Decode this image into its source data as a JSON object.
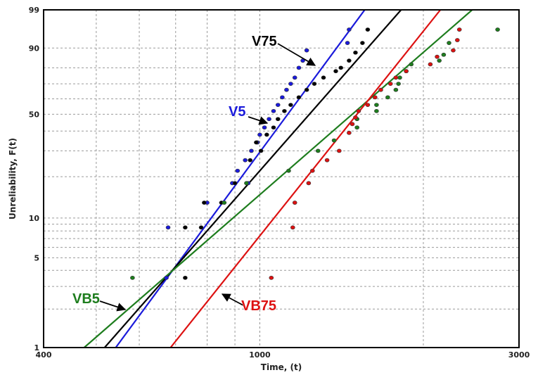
{
  "chart_data": {
    "type": "scatter",
    "title": "",
    "xlabel": "Time, (t)",
    "ylabel": "Unreliability, F(t)",
    "x_scale": "log",
    "y_scale": "weibull",
    "xlim": [
      400,
      3000
    ],
    "ylim": [
      1,
      99
    ],
    "x_ticks": [
      400,
      1000,
      3000
    ],
    "y_ticks": [
      1,
      5,
      10,
      50,
      90,
      99
    ],
    "grid": true,
    "legend": "none",
    "series": [
      {
        "name": "V5",
        "color": "#1a1adb",
        "line": [
          [
            543,
            1
          ],
          [
            1560,
            99
          ]
        ],
        "points": [
          [
            673,
            3.5
          ],
          [
            678,
            8.5
          ],
          [
            800,
            13
          ],
          [
            890,
            18
          ],
          [
            952,
            18
          ],
          [
            910,
            22
          ],
          [
            940,
            26
          ],
          [
            965,
            30
          ],
          [
            990,
            34
          ],
          [
            1000,
            38
          ],
          [
            1020,
            42
          ],
          [
            1040,
            47
          ],
          [
            1060,
            52
          ],
          [
            1080,
            56
          ],
          [
            1100,
            61
          ],
          [
            1120,
            66
          ],
          [
            1140,
            70
          ],
          [
            1160,
            74
          ],
          [
            1180,
            80
          ],
          [
            1200,
            84
          ],
          [
            1220,
            89
          ],
          [
            1450,
            92
          ],
          [
            1460,
            96
          ]
        ]
      },
      {
        "name": "V75",
        "color": "#000000",
        "line": [
          [
            518,
            1
          ],
          [
            1820,
            99
          ]
        ],
        "points": [
          [
            729,
            3.5
          ],
          [
            729,
            8.5
          ],
          [
            780,
            8.5
          ],
          [
            790,
            13
          ],
          [
            850,
            13
          ],
          [
            900,
            18
          ],
          [
            960,
            26
          ],
          [
            985,
            34
          ],
          [
            1005,
            30
          ],
          [
            1030,
            38
          ],
          [
            1060,
            42
          ],
          [
            1080,
            47
          ],
          [
            1110,
            52
          ],
          [
            1140,
            56
          ],
          [
            1180,
            61
          ],
          [
            1220,
            66
          ],
          [
            1260,
            70
          ],
          [
            1310,
            74
          ],
          [
            1380,
            78
          ],
          [
            1410,
            80
          ],
          [
            1460,
            84
          ],
          [
            1500,
            88
          ],
          [
            1545,
            92
          ],
          [
            1580,
            96
          ]
        ]
      },
      {
        "name": "VB5",
        "color": "#1e7d1e",
        "line": [
          [
            475,
            1
          ],
          [
            2460,
            99
          ]
        ],
        "points": [
          [
            583,
            3.5
          ],
          [
            860,
            13
          ],
          [
            945,
            18
          ],
          [
            1130,
            22
          ],
          [
            1280,
            30
          ],
          [
            1370,
            35
          ],
          [
            1510,
            42
          ],
          [
            1510,
            47
          ],
          [
            1640,
            52
          ],
          [
            1640,
            56
          ],
          [
            1720,
            61
          ],
          [
            1780,
            66
          ],
          [
            1800,
            70
          ],
          [
            1810,
            74
          ],
          [
            1860,
            78
          ],
          [
            1900,
            82
          ],
          [
            2140,
            84
          ],
          [
            2180,
            87
          ],
          [
            2230,
            92
          ],
          [
            2740,
            96
          ]
        ]
      },
      {
        "name": "VB75",
        "color": "#dd1111",
        "line": [
          [
            685,
            1
          ],
          [
            2150,
            99
          ]
        ],
        "points": [
          [
            1050,
            3.5
          ],
          [
            1150,
            8.5
          ],
          [
            1160,
            13
          ],
          [
            1230,
            18
          ],
          [
            1250,
            22
          ],
          [
            1330,
            26
          ],
          [
            1400,
            30
          ],
          [
            1460,
            39
          ],
          [
            1480,
            44
          ],
          [
            1500,
            48
          ],
          [
            1520,
            52
          ],
          [
            1580,
            56
          ],
          [
            1630,
            61
          ],
          [
            1670,
            66
          ],
          [
            1740,
            70
          ],
          [
            1780,
            74
          ],
          [
            1860,
            78
          ],
          [
            2060,
            82
          ],
          [
            2120,
            86
          ],
          [
            2270,
            89
          ],
          [
            2310,
            93
          ],
          [
            2330,
            96
          ]
        ]
      }
    ],
    "annotations": [
      {
        "label": "V75",
        "color": "#000000"
      },
      {
        "label": "V5",
        "color": "#1a1adb"
      },
      {
        "label": "VB5",
        "color": "#1e7d1e"
      },
      {
        "label": "VB75",
        "color": "#dd1111"
      }
    ]
  }
}
